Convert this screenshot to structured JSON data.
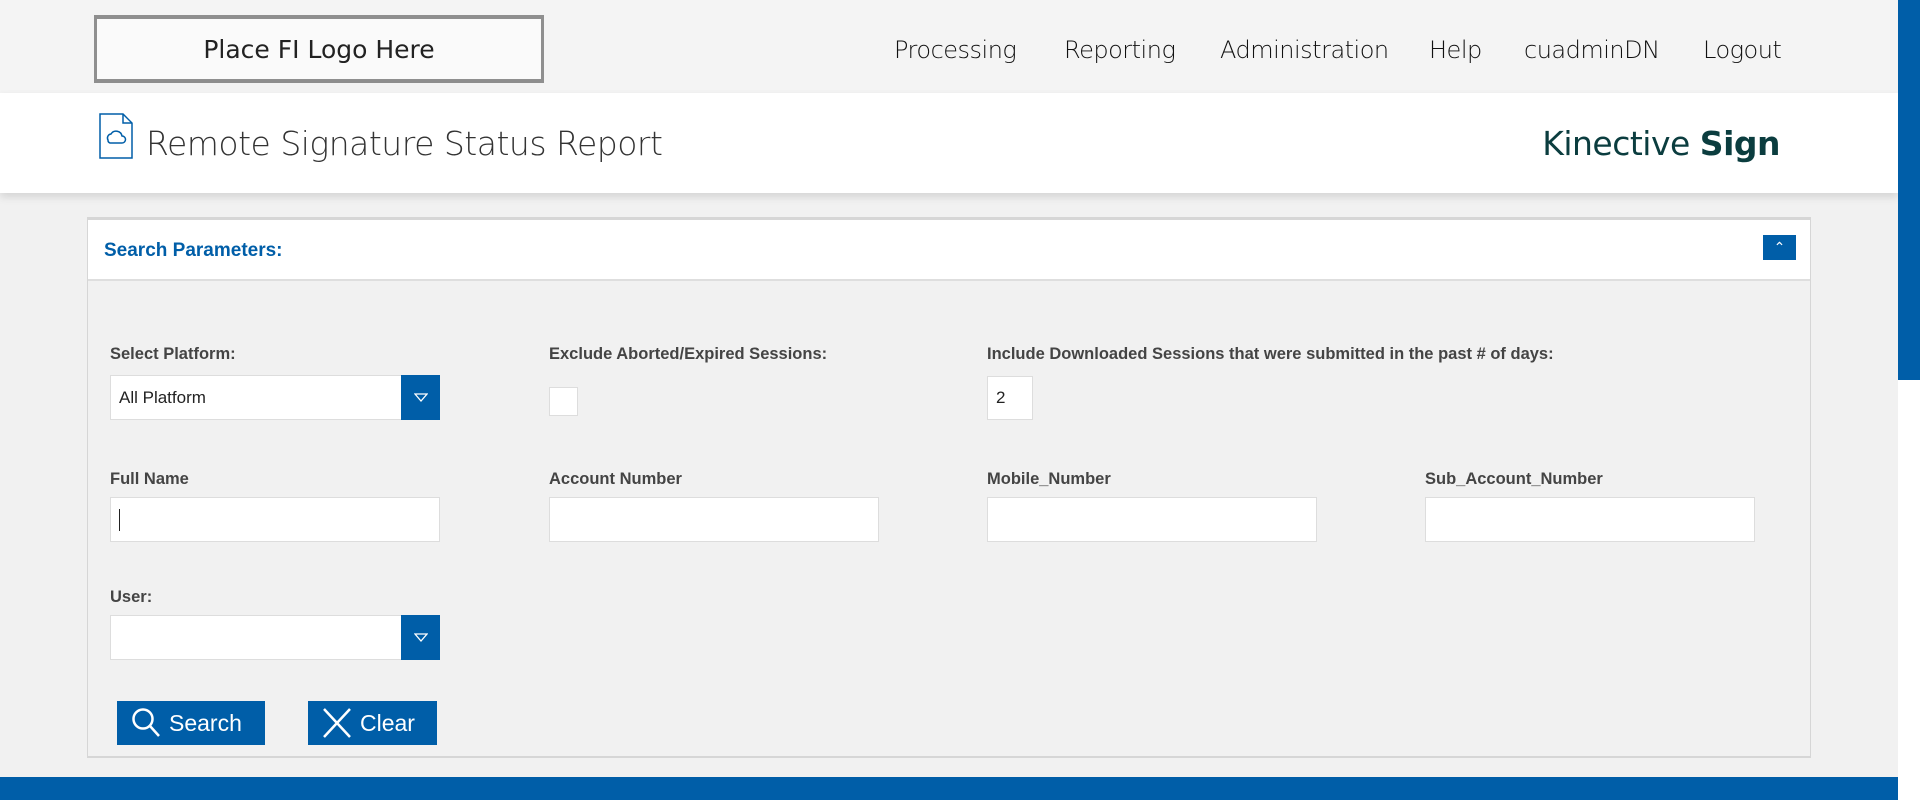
{
  "header": {
    "logo_text": "Place FI Logo Here",
    "nav": [
      "Processing",
      "Reporting",
      "Administration",
      "Help",
      "cuadminDN",
      "Logout"
    ]
  },
  "page": {
    "title": "Remote Signature Status Report",
    "brand_light": "Kinective ",
    "brand_bold": "Sign"
  },
  "panel": {
    "title": "Search Parameters:",
    "platform": {
      "label": "Select Platform:",
      "value": "All Platform"
    },
    "exclude": {
      "label": "Exclude Aborted/Expired Sessions:",
      "checked": false
    },
    "days": {
      "label": "Include Downloaded Sessions that were submitted in the past # of days:",
      "value": "2"
    },
    "full_name": {
      "label": "Full Name",
      "value": ""
    },
    "account": {
      "label": "Account Number",
      "value": ""
    },
    "mobile": {
      "label": "Mobile_Number",
      "value": ""
    },
    "sub_account": {
      "label": "Sub_Account_Number",
      "value": ""
    },
    "user": {
      "label": "User:",
      "value": ""
    },
    "search_label": "Search",
    "clear_label": "Clear"
  },
  "colors": {
    "accent": "#005ea8",
    "brand": "#0b3d3f"
  }
}
